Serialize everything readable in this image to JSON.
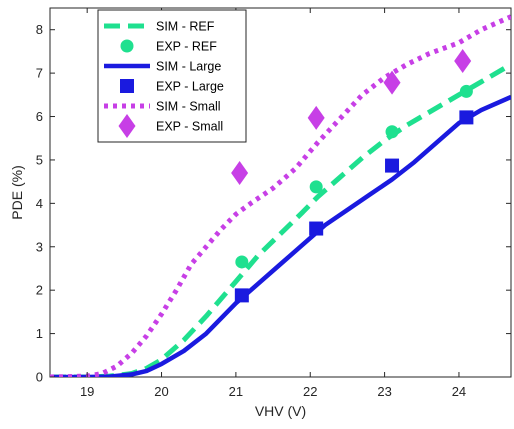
{
  "chart_data": {
    "type": "line",
    "title": "",
    "xlabel": "VHV (V)",
    "ylabel": "PDE (%)",
    "xlim": [
      18.5,
      24.7
    ],
    "ylim": [
      0,
      8.5
    ],
    "xticks": [
      19,
      20,
      21,
      22,
      23,
      24
    ],
    "yticks": [
      0,
      1,
      2,
      3,
      4,
      5,
      6,
      7,
      8
    ],
    "grid": false,
    "legend_position": "top-left",
    "series": [
      {
        "name": "SIM - REF",
        "kind": "line",
        "style": "dashed",
        "color": "#1fe08f",
        "x": [
          18.5,
          19.0,
          19.3,
          19.6,
          19.8,
          20.0,
          20.3,
          20.6,
          21.0,
          21.3,
          21.6,
          21.9,
          22.1,
          22.4,
          22.7,
          23.0,
          23.3,
          23.6,
          24.0,
          24.3,
          24.7
        ],
        "y": [
          0.0,
          0.0,
          0.02,
          0.08,
          0.2,
          0.4,
          0.85,
          1.4,
          2.2,
          2.8,
          3.3,
          3.8,
          4.15,
          4.6,
          5.05,
          5.45,
          5.8,
          6.1,
          6.5,
          6.8,
          7.2
        ]
      },
      {
        "name": "EXP - REF",
        "kind": "marker",
        "marker": "circle",
        "color": "#1fe08f",
        "x": [
          21.08,
          22.08,
          23.1,
          24.1
        ],
        "y": [
          2.65,
          4.38,
          5.65,
          6.58
        ]
      },
      {
        "name": "SIM - Large",
        "kind": "line",
        "style": "solid",
        "color": "#1a1adf",
        "x": [
          18.5,
          19.0,
          19.3,
          19.6,
          19.8,
          20.0,
          20.3,
          20.6,
          21.0,
          21.3,
          21.6,
          21.9,
          22.2,
          22.5,
          22.8,
          23.1,
          23.4,
          23.7,
          24.0,
          24.3,
          24.7
        ],
        "y": [
          0.0,
          0.0,
          0.01,
          0.06,
          0.14,
          0.3,
          0.6,
          1.0,
          1.7,
          2.15,
          2.6,
          3.05,
          3.5,
          3.85,
          4.2,
          4.55,
          4.95,
          5.4,
          5.85,
          6.15,
          6.45
        ]
      },
      {
        "name": "EXP - Large",
        "kind": "marker",
        "marker": "square",
        "color": "#1a1adf",
        "x": [
          21.08,
          22.08,
          23.1,
          24.1
        ],
        "y": [
          1.88,
          3.42,
          4.87,
          5.98
        ]
      },
      {
        "name": "SIM - Small",
        "kind": "line",
        "style": "dotted",
        "color": "#c73fe6",
        "x": [
          18.5,
          19.0,
          19.2,
          19.4,
          19.6,
          19.8,
          20.0,
          20.2,
          20.4,
          20.6,
          20.8,
          21.0,
          21.2,
          21.5,
          21.8,
          22.1,
          22.4,
          22.7,
          23.0,
          23.3,
          23.6,
          24.0,
          24.3,
          24.7
        ],
        "y": [
          0.0,
          0.02,
          0.08,
          0.25,
          0.55,
          0.95,
          1.45,
          2.0,
          2.6,
          3.0,
          3.4,
          3.75,
          4.0,
          4.35,
          4.8,
          5.4,
          5.95,
          6.5,
          6.9,
          7.2,
          7.45,
          7.7,
          8.0,
          8.3
        ]
      },
      {
        "name": "EXP - Small",
        "kind": "marker",
        "marker": "diamond",
        "color": "#c73fe6",
        "x": [
          21.05,
          22.08,
          23.1,
          24.05
        ],
        "y": [
          4.7,
          5.97,
          6.78,
          7.28
        ]
      }
    ]
  }
}
